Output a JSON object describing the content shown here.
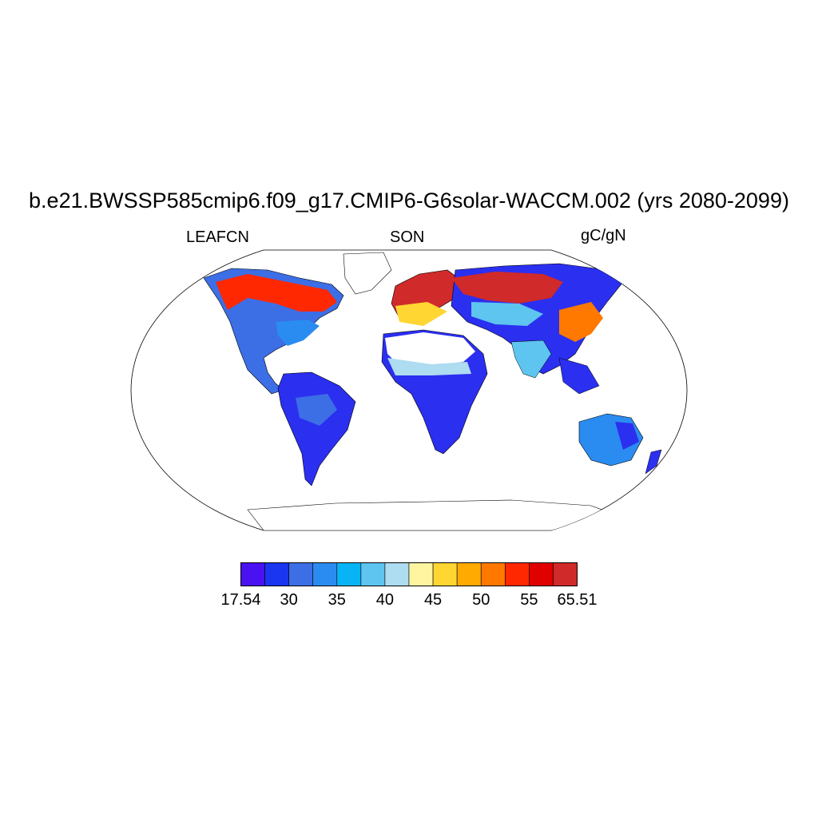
{
  "title": "b.e21.BWSSP585cmip6.f09_g17.CMIP6-G6solar-WACCM.002 (yrs 2080-2099)",
  "left_label": "LEAFCN",
  "center_label": "SON",
  "right_label": "gC/gN",
  "colorbar": {
    "colors": [
      "#4a12f0",
      "#1a36f0",
      "#3c6ee6",
      "#2a8cf0",
      "#08b4f5",
      "#5ec4f0",
      "#aedcf0",
      "#fff5a0",
      "#ffd632",
      "#ffaa00",
      "#ff7800",
      "#ff2800",
      "#e00000",
      "#d02a2a"
    ],
    "labels": [
      "17.54",
      "30",
      "35",
      "40",
      "45",
      "50",
      "55",
      "65.51"
    ]
  },
  "map_colors": {
    "low": "#2b2ff0",
    "low_mid": "#3c6ee6",
    "mid": "#5ec4f0",
    "light": "#aedcf0",
    "yellow": "#ffd632",
    "orange": "#ffaa00",
    "high": "#ff2800",
    "very_high": "#d02a2a"
  }
}
